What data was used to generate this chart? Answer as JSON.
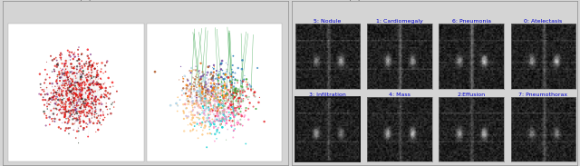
{
  "fig_width": 6.4,
  "fig_height": 1.83,
  "dpi": 100,
  "panel_a_title": "(A) INITIAL AND FINAL GRAPH",
  "panel_b_title": "(B) CLASSIFICATION OUTPUT SAMPLES",
  "title_fontsize": 7.2,
  "background_color": "#d4d4d4",
  "panel_bg": "#ffffff",
  "graph_bg": "#ffffff",
  "xray_labels_row1": [
    "5: Nodule",
    "1: Cardiomegaly",
    "6: Pneumonia",
    "0: Atelectasis"
  ],
  "xray_labels_row2": [
    "3: Infiltration",
    "4: Mass",
    "2:Effusion",
    "7: Pneumothorax"
  ],
  "label_color": "#0000cc",
  "label_fontsize": 4.5,
  "border_color": "#888888"
}
